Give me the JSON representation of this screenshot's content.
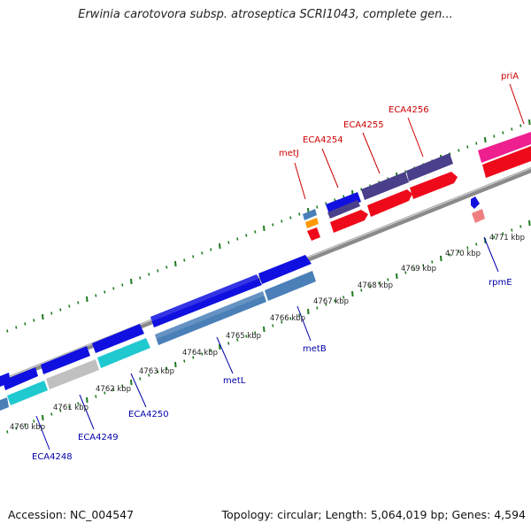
{
  "title": "Erwinia carotovora subsp. atroseptica SCRI1043, complete gen...",
  "footer": {
    "accession": "Accession: NC_004547",
    "topology": "Topology: circular; Length: 5,064,019 bp; Genes: 4,594"
  },
  "colors": {
    "backbone": "#8a8a8a",
    "tick": "#1f7a1f",
    "label_upper": "#cc0000",
    "label_lower": "#0000aa",
    "feature_blue": "#1010e0",
    "feature_steel": "#4a7fb8",
    "feature_cyan": "#20c8d0",
    "feature_gray": "#c0c0c0",
    "feature_red": "#ee0a1a",
    "feature_navy": "#4a3f8a",
    "feature_pink": "#ee2090",
    "feature_orange": "#ff9900",
    "feature_salmon": "#f08080"
  },
  "kbp_labels": [
    "4760 kbp",
    "4761 kbp",
    "4762 kbp",
    "4763 kbp",
    "4764 kbp",
    "4765 kbp",
    "4766 kbp",
    "4767 kbp",
    "4768 kbp",
    "4769 kbp",
    "4770 kbp",
    "4771 kbp"
  ],
  "gene_labels_upper": [
    "metJ",
    "ECA4254",
    "ECA4255",
    "ECA4256",
    "priA"
  ],
  "gene_labels_lower": [
    "ECA4248",
    "ECA4249",
    "ECA4250",
    "metL",
    "metB",
    "rpmE"
  ]
}
